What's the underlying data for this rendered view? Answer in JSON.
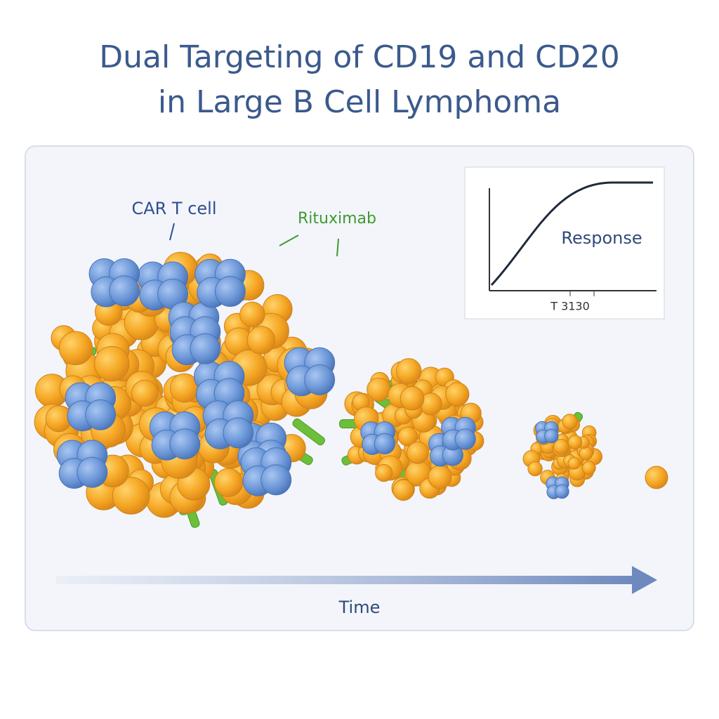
{
  "header": {
    "title_line_1": "Dual Targeting of CD19 and CD20",
    "title_line_2": "in Large B Cell Lymphoma"
  },
  "illustration": {
    "car_t_label": "CAR T cell",
    "rituximab_label": "Rituximab",
    "time_label": "Time"
  },
  "inset": {
    "curve_label": "Response",
    "x_label": "T 3130"
  }
}
